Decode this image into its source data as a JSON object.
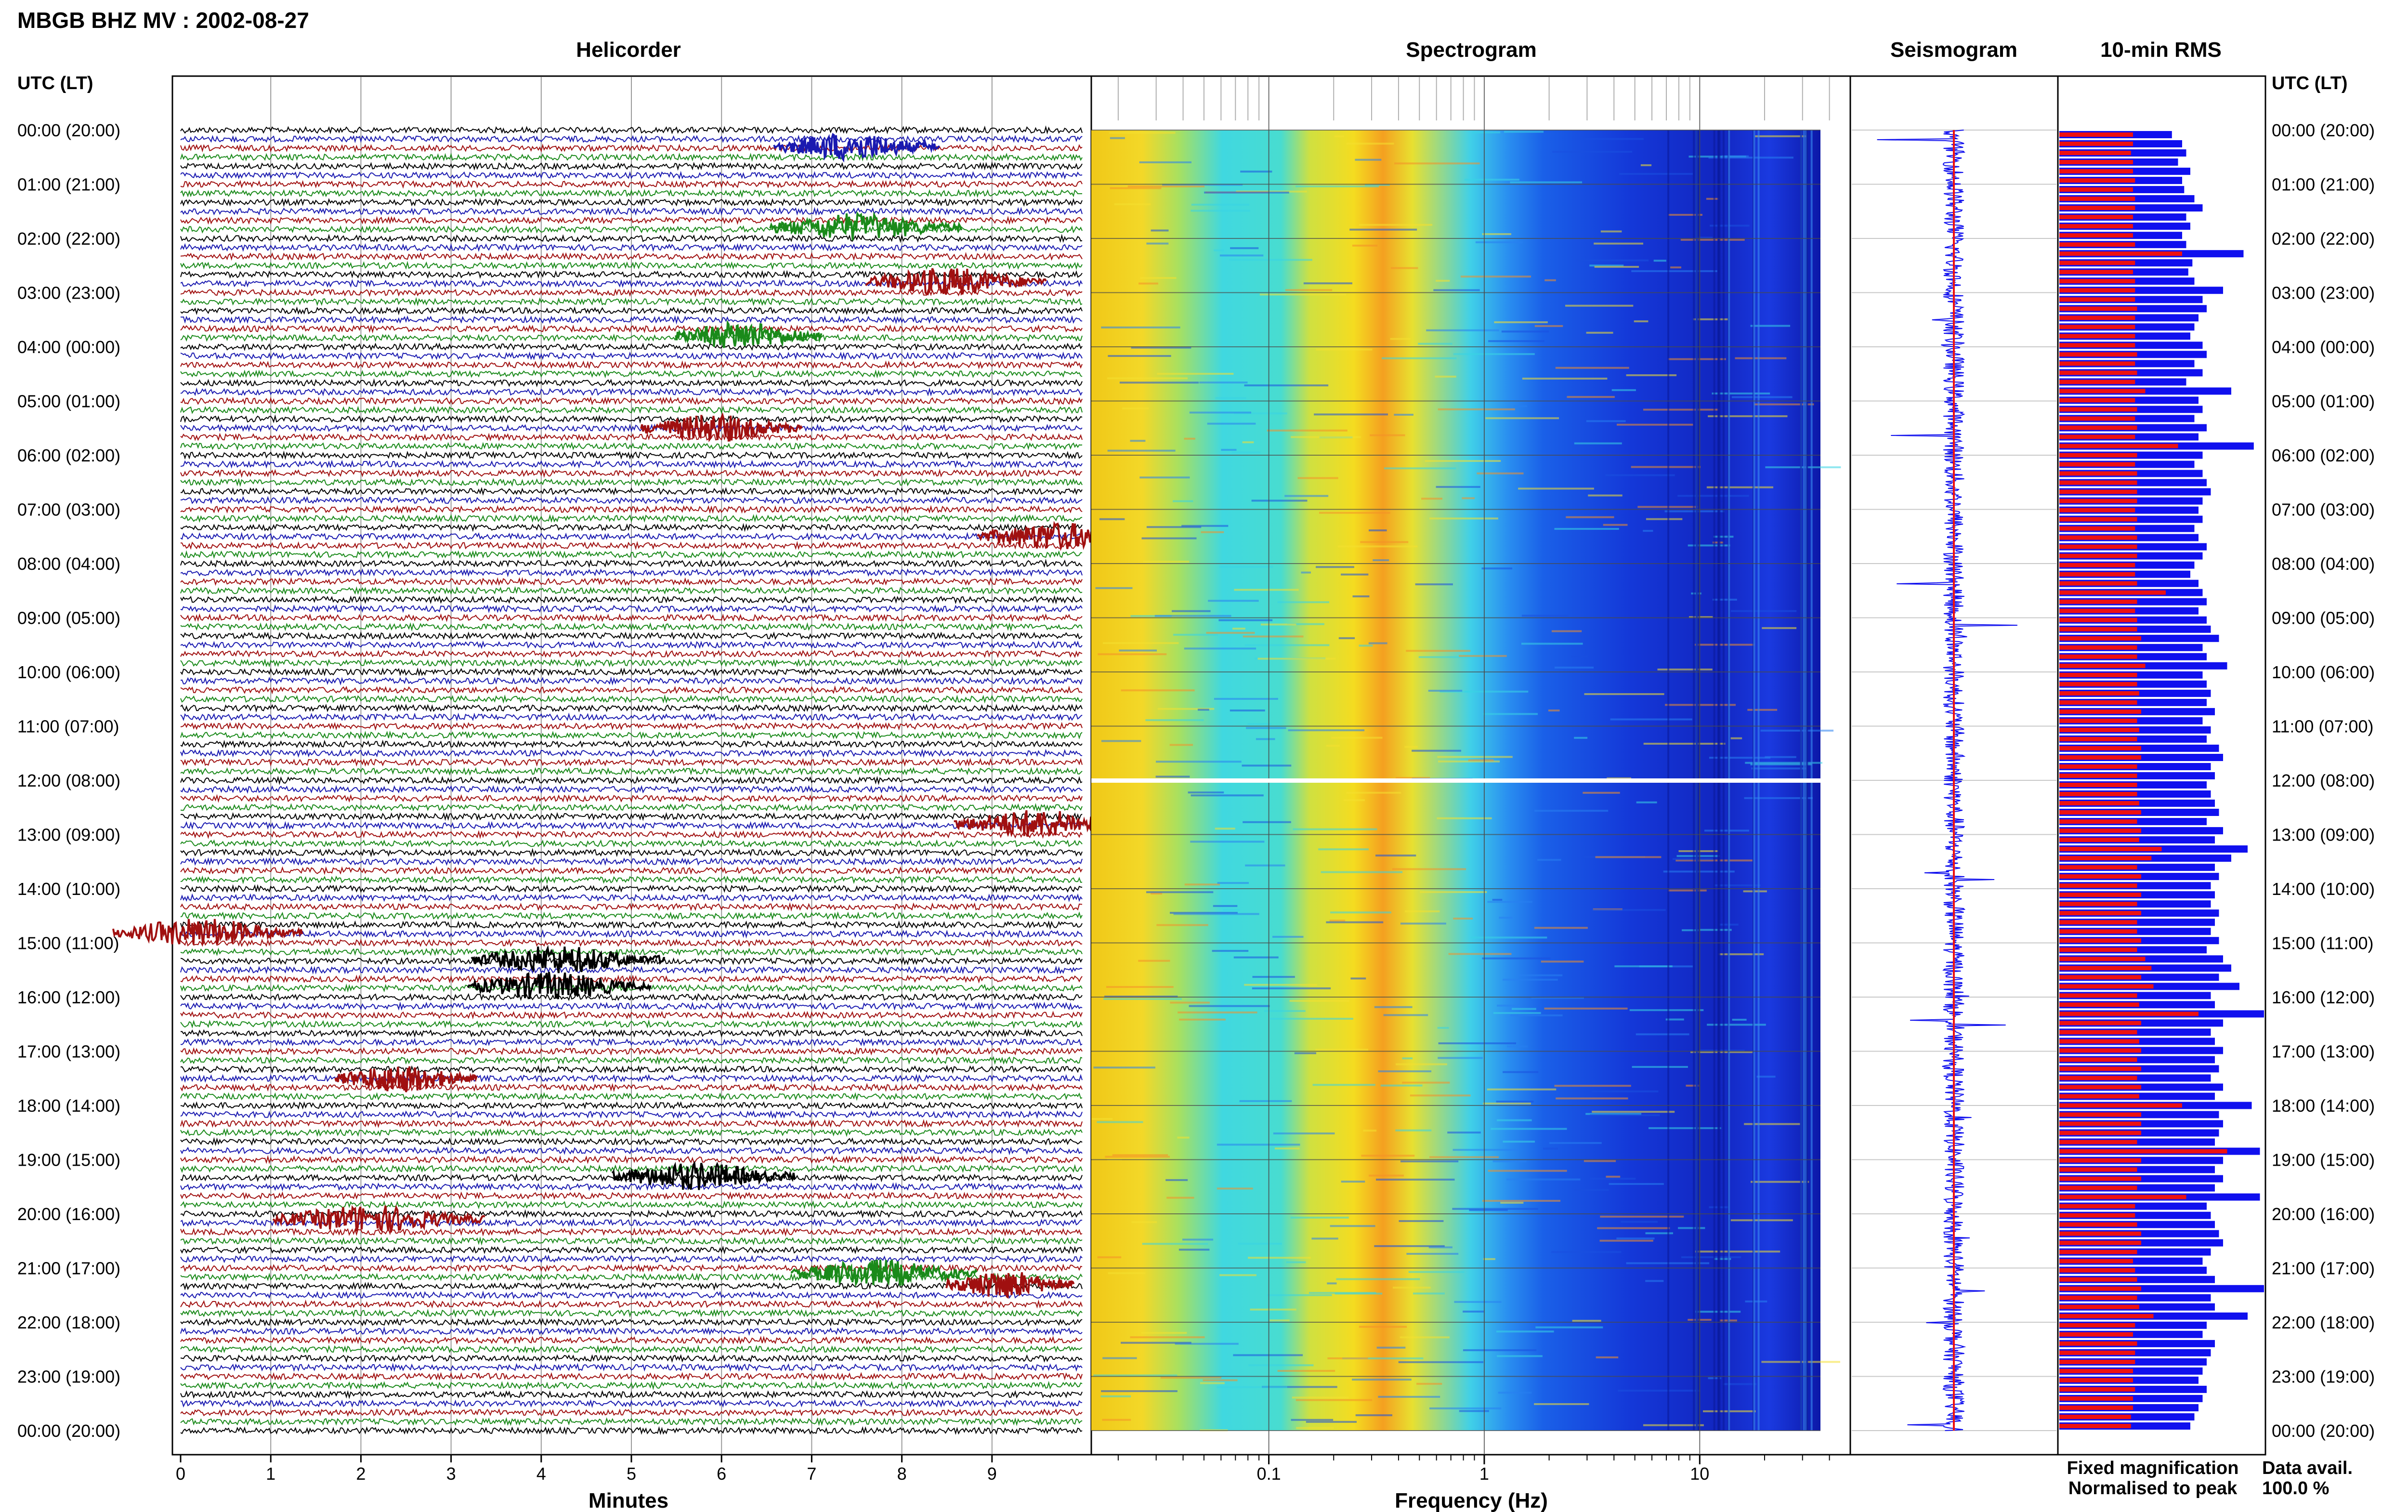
{
  "title": "MBGB BHZ MV : 2002-08-27",
  "panels": {
    "helicorder": "Helicorder",
    "spectrogram": "Spectrogram",
    "seismogram": "Seismogram",
    "rms": "10-min RMS"
  },
  "time_axis_label": "UTC (LT)",
  "time_labels": [
    "00:00 (20:00)",
    "01:00 (21:00)",
    "02:00 (22:00)",
    "03:00 (23:00)",
    "04:00 (00:00)",
    "05:00 (01:00)",
    "06:00 (02:00)",
    "07:00 (03:00)",
    "08:00 (04:00)",
    "09:00 (05:00)",
    "10:00 (06:00)",
    "11:00 (07:00)",
    "12:00 (08:00)",
    "13:00 (09:00)",
    "14:00 (10:00)",
    "15:00 (11:00)",
    "16:00 (12:00)",
    "17:00 (13:00)",
    "18:00 (14:00)",
    "19:00 (15:00)",
    "20:00 (16:00)",
    "21:00 (17:00)",
    "22:00 (18:00)",
    "23:00 (19:00)",
    "00:00 (20:00)"
  ],
  "x_labels": {
    "helicorder": "Minutes",
    "spectrogram": "Frequency (Hz)"
  },
  "legend": {
    "fixed": "Fixed magnification",
    "normalised": "Normalised to peak",
    "fixed_color": "#1010ee",
    "normalised_color": "#ee1010"
  },
  "data_avail": {
    "label": "Data avail.",
    "value": "100.0 %"
  },
  "colors": {
    "trace_cycle": [
      "#000000",
      "#1a1ab0",
      "#a01010",
      "#1a8a1a"
    ],
    "spectro_low": "#1010d0",
    "spectro_mid": "#30d0e0",
    "spectro_high": "#f0e020",
    "spectro_peak": "#f08020"
  },
  "chart_data": [
    {
      "type": "line",
      "panel": "helicorder",
      "title": "Helicorder",
      "xlabel": "Minutes",
      "xlim": [
        0,
        10
      ],
      "x_ticks": [
        0,
        1,
        2,
        3,
        4,
        5,
        6,
        7,
        8,
        9
      ],
      "rows_per_hour": 6,
      "events": [
        {
          "hour": 0.3,
          "minute": 7.5,
          "color": "#1a1ab0"
        },
        {
          "hour": 1.8,
          "minute": 7.6,
          "color": "#1a8a1a"
        },
        {
          "hour": 2.8,
          "minute": 8.6,
          "color": "#a01010"
        },
        {
          "hour": 3.8,
          "minute": 6.3,
          "color": "#1a8a1a"
        },
        {
          "hour": 5.5,
          "minute": 6.0,
          "color": "#a01010"
        },
        {
          "hour": 7.5,
          "minute": 9.8,
          "color": "#a01010"
        },
        {
          "hour": 12.8,
          "minute": 9.6,
          "color": "#a01010"
        },
        {
          "hour": 14.8,
          "minute": 0.3,
          "color": "#a01010"
        },
        {
          "hour": 15.3,
          "minute": 4.3,
          "color": "#000000"
        },
        {
          "hour": 15.8,
          "minute": 4.2,
          "color": "#000000"
        },
        {
          "hour": 17.5,
          "minute": 2.5,
          "color": "#a01010"
        },
        {
          "hour": 19.3,
          "minute": 5.8,
          "color": "#000000"
        },
        {
          "hour": 20.1,
          "minute": 2.2,
          "color": "#a01010"
        },
        {
          "hour": 21.1,
          "minute": 7.8,
          "color": "#1a8a1a"
        },
        {
          "hour": 21.3,
          "minute": 9.2,
          "color": "#a01010"
        }
      ]
    },
    {
      "type": "heatmap",
      "panel": "spectrogram",
      "title": "Spectrogram",
      "xlabel": "Frequency (Hz)",
      "xscale": "log",
      "xlim": [
        0.015,
        50
      ],
      "x_tick_labels": [
        "0.1",
        "1",
        "10"
      ],
      "x_tick_values": [
        0.1,
        1,
        10
      ],
      "data_gap_hour": 12.0
    },
    {
      "type": "line",
      "panel": "seismogram",
      "title": "Seismogram",
      "series": [
        {
          "name": "Fixed magnification",
          "color": "#1010ee"
        },
        {
          "name": "Normalised to peak",
          "color": "#ee1010"
        }
      ]
    },
    {
      "type": "bar",
      "panel": "rms",
      "title": "10-min RMS",
      "orientation": "horizontal",
      "bins_per_hour": 6,
      "series": [
        {
          "name": "Fixed magnification",
          "color": "#1010ee"
        },
        {
          "name": "Normalised to peak",
          "color": "#ee1010"
        }
      ],
      "blue_values": [
        0.55,
        0.6,
        0.62,
        0.58,
        0.64,
        0.6,
        0.61,
        0.66,
        0.7,
        0.62,
        0.64,
        0.6,
        0.62,
        0.9,
        0.65,
        0.63,
        0.66,
        0.8,
        0.7,
        0.72,
        0.68,
        0.66,
        0.64,
        0.7,
        0.72,
        0.66,
        0.7,
        0.62,
        0.84,
        0.68,
        0.7,
        0.66,
        0.72,
        0.68,
        0.95,
        0.7,
        0.66,
        0.7,
        0.72,
        0.74,
        0.7,
        0.68,
        0.7,
        0.66,
        0.68,
        0.72,
        0.7,
        0.66,
        0.64,
        0.68,
        0.7,
        0.72,
        0.68,
        0.72,
        0.74,
        0.78,
        0.7,
        0.72,
        0.82,
        0.7,
        0.72,
        0.74,
        0.72,
        0.76,
        0.7,
        0.74,
        0.72,
        0.78,
        0.8,
        0.74,
        0.76,
        0.72,
        0.74,
        0.76,
        0.78,
        0.72,
        0.8,
        0.76,
        0.92,
        0.84,
        0.76,
        0.78,
        0.74,
        0.76,
        0.74,
        0.78,
        0.76,
        0.74,
        0.78,
        0.72,
        0.8,
        0.84,
        0.78,
        0.88,
        0.74,
        0.76,
        1.0,
        0.8,
        0.74,
        0.76,
        0.8,
        0.76,
        0.78,
        0.74,
        0.8,
        0.76,
        0.94,
        0.78,
        0.8,
        0.78,
        0.76,
        0.98,
        0.8,
        0.76,
        0.8,
        0.76,
        0.98,
        0.72,
        0.74,
        0.76,
        0.78,
        0.8,
        0.74,
        0.7,
        0.72,
        0.76,
        1.0,
        0.74,
        0.76,
        0.92,
        0.72,
        0.7,
        0.76,
        0.74,
        0.72,
        0.7,
        0.68,
        0.72,
        0.7,
        0.68,
        0.66,
        0.64
      ],
      "red_values": [
        0.36,
        0.36,
        0.35,
        0.36,
        0.36,
        0.37,
        0.36,
        0.37,
        0.37,
        0.36,
        0.36,
        0.36,
        0.37,
        0.6,
        0.37,
        0.36,
        0.37,
        0.37,
        0.37,
        0.38,
        0.37,
        0.37,
        0.37,
        0.37,
        0.38,
        0.37,
        0.38,
        0.37,
        0.42,
        0.37,
        0.38,
        0.37,
        0.38,
        0.37,
        0.58,
        0.38,
        0.37,
        0.38,
        0.38,
        0.38,
        0.38,
        0.37,
        0.38,
        0.37,
        0.38,
        0.38,
        0.38,
        0.37,
        0.37,
        0.38,
        0.52,
        0.38,
        0.37,
        0.38,
        0.38,
        0.4,
        0.38,
        0.38,
        0.42,
        0.38,
        0.38,
        0.39,
        0.38,
        0.4,
        0.38,
        0.39,
        0.38,
        0.4,
        0.4,
        0.38,
        0.38,
        0.38,
        0.38,
        0.39,
        0.4,
        0.38,
        0.4,
        0.39,
        0.5,
        0.45,
        0.38,
        0.4,
        0.38,
        0.4,
        0.38,
        0.4,
        0.38,
        0.38,
        0.4,
        0.38,
        0.42,
        0.45,
        0.4,
        0.46,
        0.38,
        0.39,
        0.68,
        0.4,
        0.38,
        0.39,
        0.4,
        0.38,
        0.4,
        0.38,
        0.4,
        0.39,
        0.6,
        0.4,
        0.4,
        0.4,
        0.38,
        0.82,
        0.4,
        0.38,
        0.4,
        0.38,
        0.62,
        0.37,
        0.37,
        0.38,
        0.4,
        0.4,
        0.38,
        0.36,
        0.37,
        0.38,
        0.4,
        0.38,
        0.39,
        0.46,
        0.37,
        0.36,
        0.38,
        0.37,
        0.37,
        0.36,
        0.36,
        0.37,
        0.36,
        0.36,
        0.35,
        0.35
      ]
    }
  ]
}
